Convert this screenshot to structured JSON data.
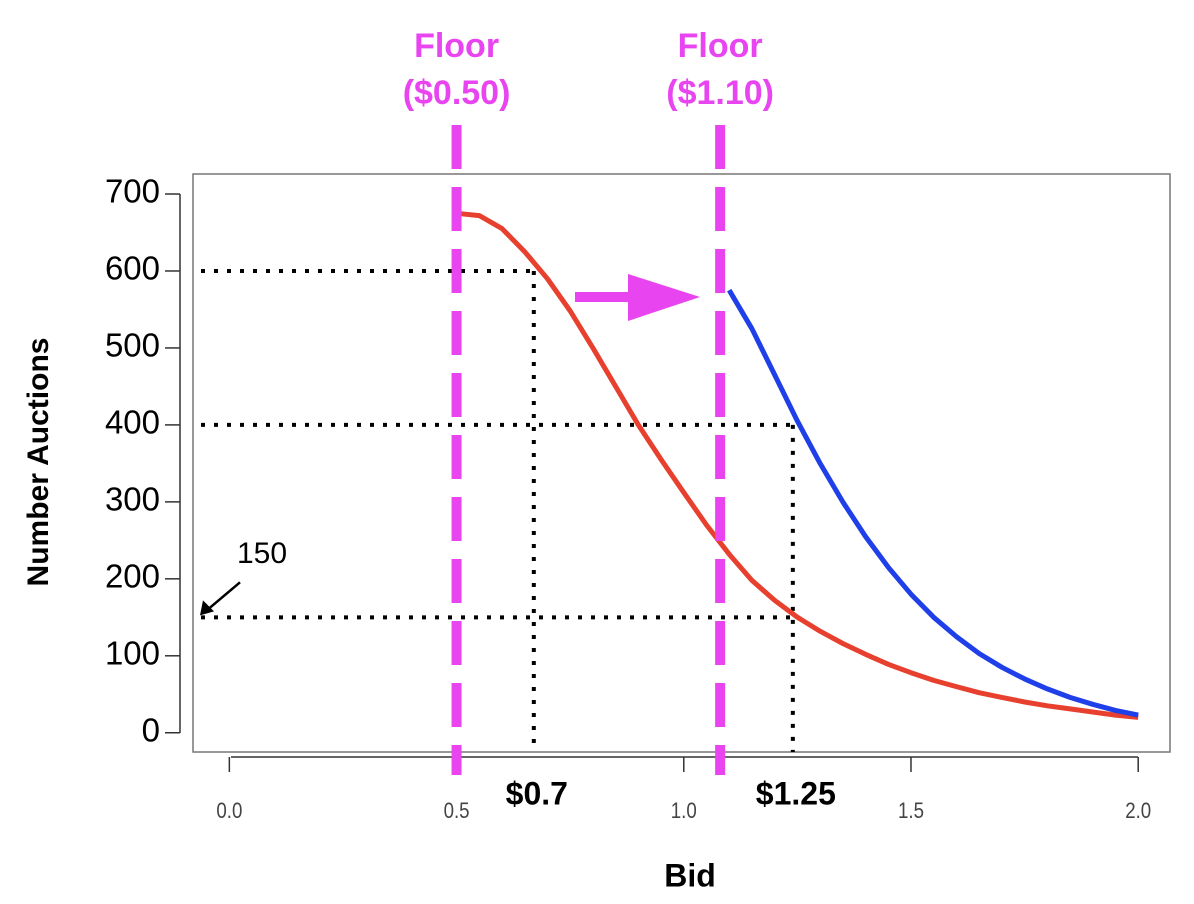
{
  "chart_data": {
    "type": "line",
    "x_label": "Bid",
    "y_label": "Number Auctions",
    "xlim": [
      -0.08,
      2.07
    ],
    "ylim": [
      -25,
      726
    ],
    "xticks": [
      {
        "value": 0,
        "label": "0.0"
      },
      0.5,
      {
        "value": 1,
        "label": "1.0"
      },
      1.5,
      {
        "value": 2,
        "label": "2.0"
      }
    ],
    "yticks": [
      0,
      100,
      200,
      300,
      400,
      500,
      600,
      700
    ],
    "series": [
      {
        "color": "#e8402e",
        "x": [
          0.5,
          0.55,
          0.6,
          0.65,
          0.7,
          0.75,
          0.8,
          0.85,
          0.9,
          0.95,
          1.0,
          1.05,
          1.1,
          1.15,
          1.2,
          1.25,
          1.3,
          1.35,
          1.4,
          1.45,
          1.5,
          1.55,
          1.6,
          1.65,
          1.7,
          1.75,
          1.8,
          1.85,
          1.9,
          1.95,
          2.0
        ],
        "values": [
          675,
          672,
          655,
          625,
          590,
          548,
          500,
          450,
          400,
          355,
          312,
          270,
          232,
          198,
          172,
          150,
          132,
          116,
          102,
          89,
          78,
          68,
          60,
          52,
          46,
          40,
          35,
          31,
          27,
          23,
          20
        ]
      },
      {
        "color": "#1f3fe8",
        "x": [
          1.1,
          1.15,
          1.2,
          1.25,
          1.3,
          1.35,
          1.4,
          1.45,
          1.5,
          1.55,
          1.6,
          1.65,
          1.7,
          1.75,
          1.8,
          1.85,
          1.9,
          1.95,
          2.0
        ],
        "values": [
          575,
          525,
          465,
          405,
          350,
          300,
          255,
          215,
          180,
          150,
          125,
          103,
          85,
          70,
          57,
          46,
          37,
          29,
          23
        ]
      }
    ],
    "floors": [
      {
        "x": 0.5,
        "label": [
          "Floor",
          "($0.50)"
        ]
      },
      {
        "x": 1.08,
        "label": [
          "Floor",
          "($1.10)"
        ]
      }
    ],
    "hlines": [
      {
        "y": 600,
        "x_end": 0.67
      },
      {
        "y": 400,
        "x_end": 1.24
      },
      {
        "y": 150,
        "x_end": 1.24,
        "label": "150"
      }
    ],
    "vlines": [
      {
        "x": 0.67,
        "y_end": 600,
        "label": "$0.7"
      },
      {
        "x": 1.24,
        "y_end": 400,
        "label": "$1.25"
      }
    ],
    "floor_color": "#e844f0"
  }
}
